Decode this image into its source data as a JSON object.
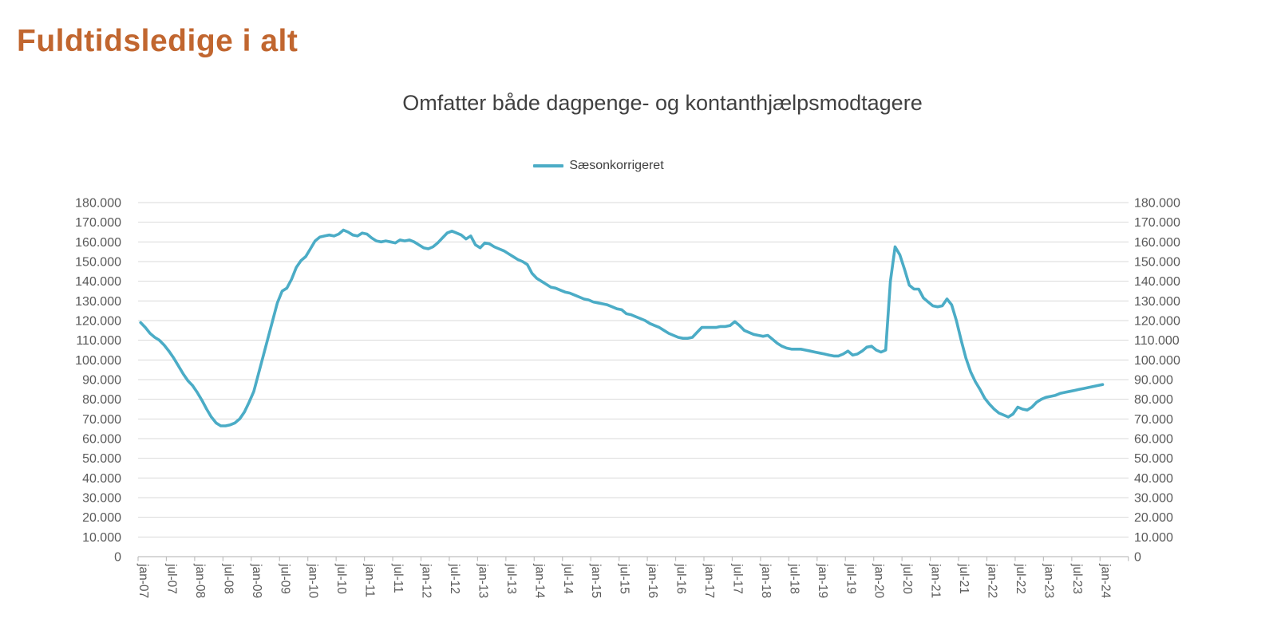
{
  "page": {
    "title": "Fuldtidsledige i alt"
  },
  "colors": {
    "title": "#C1662F",
    "chart_title_text": "#404040",
    "legend_text": "#404040",
    "axis_text": "#595959",
    "gridline": "#D9D9D9",
    "axis_line": "#BFBFBF",
    "series_line": "#4BACC6"
  },
  "chart_data": {
    "type": "line",
    "title": "Omfatter både dagpenge- og kontanthjælpsmodtagere",
    "xlabel": "",
    "ylabel": "",
    "grid": "horizontal",
    "legend_position": "top-center",
    "x_unit": "month",
    "x_range": [
      "jan-07",
      "jan-24"
    ],
    "x_tick_interval_months": 6,
    "x_tick_labels": [
      "jan-07",
      "jul-07",
      "jan-08",
      "jul-08",
      "jan-09",
      "jul-09",
      "jan-10",
      "jul-10",
      "jan-11",
      "jul-11",
      "jan-12",
      "jul-12",
      "jan-13",
      "jul-13",
      "jan-14",
      "jul-14",
      "jan-15",
      "jul-15",
      "jan-16",
      "jul-16",
      "jan-17",
      "jul-17",
      "jan-18",
      "jul-18",
      "jan-19",
      "jul-19",
      "jan-20",
      "jul-20",
      "jan-21",
      "jul-21",
      "jan-22",
      "jul-22",
      "jan-23",
      "jul-23",
      "jan-24"
    ],
    "y_axis": {
      "min": 0,
      "max": 180000,
      "step": 10000,
      "sides": [
        "left",
        "right"
      ],
      "tick_labels_bottom_to_top": [
        "0",
        "10.000",
        "20.000",
        "30.000",
        "40.000",
        "50.000",
        "60.000",
        "70.000",
        "80.000",
        "90.000",
        "100.000",
        "110.000",
        "120.000",
        "130.000",
        "140.000",
        "150.000",
        "160.000",
        "170.000",
        "180.000"
      ]
    },
    "series": [
      {
        "name": "Sæsonkorrigeret",
        "color": "#4BACC6",
        "first_month": "jan-07",
        "monthly_values": [
          119000,
          116500,
          113500,
          111500,
          110000,
          107500,
          104500,
          101000,
          97000,
          93000,
          89500,
          87000,
          83500,
          79500,
          75000,
          71000,
          68000,
          66500,
          66500,
          67000,
          68000,
          70000,
          73500,
          78500,
          84000,
          93000,
          102000,
          111000,
          120000,
          129000,
          135000,
          136500,
          141000,
          147000,
          150500,
          152500,
          156500,
          160500,
          162500,
          163000,
          163500,
          163000,
          164000,
          166000,
          165000,
          163500,
          163000,
          164500,
          164000,
          162000,
          160500,
          160000,
          160500,
          160000,
          159500,
          161000,
          160500,
          161000,
          160000,
          158500,
          157000,
          156500,
          157500,
          159500,
          162000,
          164500,
          165500,
          164500,
          163500,
          161500,
          163000,
          158500,
          157000,
          159500,
          159000,
          157500,
          156500,
          155500,
          154000,
          152500,
          151000,
          150000,
          148500,
          144000,
          141500,
          140000,
          138500,
          137000,
          136500,
          135500,
          134500,
          134000,
          133000,
          132000,
          131000,
          130500,
          129500,
          129000,
          128500,
          128000,
          127000,
          126000,
          125500,
          123500,
          123000,
          122000,
          121000,
          120000,
          118500,
          117500,
          116500,
          115000,
          113500,
          112500,
          111500,
          111000,
          111000,
          111500,
          114000,
          116500,
          116500,
          116500,
          116500,
          117000,
          117000,
          117500,
          119500,
          117500,
          115000,
          114000,
          113000,
          112500,
          112000,
          112500,
          110500,
          108500,
          107000,
          106000,
          105500,
          105500,
          105500,
          105000,
          104500,
          104000,
          103500,
          103000,
          102500,
          102000,
          102000,
          103000,
          104500,
          102500,
          103000,
          104500,
          106500,
          107000,
          105000,
          104000,
          105000,
          140000,
          157500,
          153500,
          146000,
          138000,
          136000,
          136000,
          131500,
          129500,
          127500,
          127000,
          127500,
          131000,
          128000,
          120000,
          110000,
          101000,
          94000,
          89000,
          85000,
          80500,
          77500,
          75000,
          73000,
          72000,
          71000,
          72500,
          76000,
          75000,
          74500,
          76000,
          78500,
          80000,
          81000,
          81500,
          82000,
          83000,
          83500,
          84000,
          84500,
          85000,
          85500,
          86000,
          86500,
          87000,
          87500
        ]
      }
    ]
  }
}
